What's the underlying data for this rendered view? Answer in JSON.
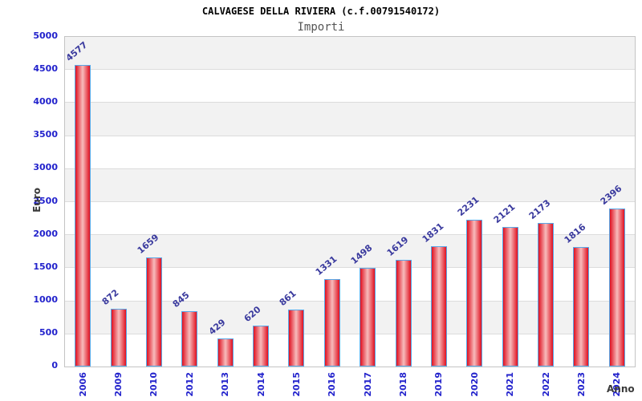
{
  "title": "CALVAGESE DELLA RIVIERA (c.f.00791540172)",
  "subtitle": "Importi",
  "chart_data": {
    "type": "bar",
    "title": "CALVAGESE DELLA RIVIERA (c.f.00791540172)",
    "subtitle": "Importi",
    "categories": [
      "2006",
      "2009",
      "2010",
      "2012",
      "2013",
      "2014",
      "2015",
      "2016",
      "2017",
      "2018",
      "2019",
      "2020",
      "2021",
      "2022",
      "2023",
      "2024"
    ],
    "values": [
      4577,
      872,
      1659,
      845,
      429,
      620,
      861,
      1331,
      1498,
      1619,
      1831,
      2231,
      2121,
      2173,
      1816,
      2396
    ],
    "xlabel": "Anno",
    "ylabel": "Euro",
    "ylim": [
      0,
      5000
    ],
    "yticks": [
      0,
      500,
      1000,
      1500,
      2000,
      2500,
      3000,
      3500,
      4000,
      4500,
      5000
    ],
    "grid": "horizontal-bands-alternating",
    "legend": "none",
    "bar_labels_rotated": true,
    "x_labels_rotated": true
  },
  "colors": {
    "axis_blue": "#2222cc",
    "value_blue": "#3a3a9e",
    "bar_border": "#58a8e8",
    "bar_red": "#e01020",
    "bar_light": "#f7bcbc",
    "band_gray": "#f2f2f2",
    "grid": "#dcdcdc",
    "label_dark": "#3a3a3a"
  }
}
